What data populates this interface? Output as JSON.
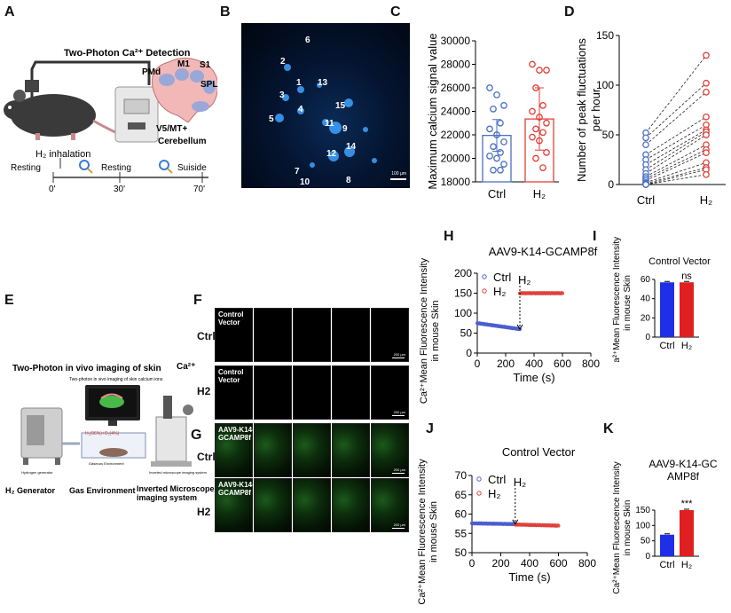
{
  "panels": {
    "A": {
      "letter": "A",
      "title": "Two-Photon Ca²⁺ Detection",
      "regions": [
        "PMd",
        "M1",
        "S1",
        "SPL",
        "V5/MT+",
        "Cerebellum"
      ],
      "timeline": {
        "h2_label": "H₂ inhalation",
        "events": [
          "Resting",
          "Resting",
          "Suiside"
        ],
        "times": [
          "0'",
          "30'",
          "70'"
        ]
      }
    },
    "B": {
      "letter": "B",
      "cell_ids": [
        "1",
        "2",
        "3",
        "4",
        "5",
        "6",
        "7",
        "8",
        "9",
        "10",
        "11",
        "12",
        "13",
        "14",
        "15"
      ],
      "scalebar": "100 µm"
    },
    "C": {
      "letter": "C"
    },
    "D": {
      "letter": "D"
    },
    "E": {
      "letter": "E",
      "title": "Two-Photon in vivo imaging of skin",
      "ca_label": "Ca²⁺",
      "small_title": "Two-photon in vivo imaging of skin calcium ions",
      "gas_formula": "H₂(96%)+O₂(4%)",
      "bottom_labels": [
        "H₂ Generator",
        "Gas Environment",
        "Inverted Microscope imaging system"
      ],
      "small_labels": [
        "Hydrogen generator",
        "Gaseous Environment",
        "Inverted microscope imaging system"
      ]
    },
    "F": {
      "letter": "F",
      "rows": [
        {
          "row_label": "Ctrl",
          "tile_label": "Control Vector"
        },
        {
          "row_label": "H2",
          "tile_label": "Control Vector"
        }
      ],
      "scale": "200 µm"
    },
    "G": {
      "letter": "G",
      "rows": [
        {
          "row_label": "Ctrl",
          "tile_label": "AAV9-K14-GCAMP8f"
        },
        {
          "row_label": "H2",
          "tile_label": "AAV9-K14-GCAMP8f"
        }
      ],
      "scale": "200 µm"
    },
    "H": {
      "letter": "H"
    },
    "I": {
      "letter": "I"
    },
    "J": {
      "letter": "J"
    },
    "K": {
      "letter": "K"
    }
  },
  "chart_data": [
    {
      "id": "C",
      "type": "bar",
      "categories": [
        "Ctrl",
        "H2"
      ],
      "values": [
        21950,
        23350
      ],
      "errors": [
        1350,
        2650
      ],
      "colors": [
        "#4a6fc4",
        "#e0413a"
      ],
      "points": [
        [
          26000,
          25400,
          24500,
          24200,
          23000,
          22500,
          22000,
          21400,
          21000,
          20500,
          20200,
          20000,
          19500,
          19000,
          19000
        ],
        [
          28000,
          27500,
          27500,
          26000,
          24500,
          24000,
          23500,
          23000,
          22500,
          22200,
          21800,
          21500,
          20500,
          20000,
          19200
        ]
      ],
      "ylabel": "Maximum calcium signal value",
      "ylim": [
        18000,
        30000
      ],
      "yticks": [
        "18000",
        "20000",
        "22000",
        "24000",
        "26000",
        "28000",
        "30000"
      ],
      "xtick_labels": [
        "Ctrl",
        "H₂"
      ]
    },
    {
      "id": "D",
      "type": "scatter",
      "categories": [
        "Ctrl",
        "H2"
      ],
      "paired": [
        [
          52,
          130
        ],
        [
          47,
          102
        ],
        [
          40,
          93
        ],
        [
          30,
          68
        ],
        [
          25,
          60
        ],
        [
          20,
          55
        ],
        [
          15,
          53
        ],
        [
          11,
          50
        ],
        [
          8,
          40
        ],
        [
          6,
          35
        ],
        [
          4,
          32
        ],
        [
          2,
          22
        ],
        [
          1,
          17
        ],
        [
          0,
          15
        ],
        [
          0,
          10
        ]
      ],
      "colors": [
        "#4a6fc4",
        "#e0413a"
      ],
      "ylabel": "Number of peak fluctuations per hour",
      "ylabel_lines": [
        "Number of peak fluctuations",
        "per hour"
      ],
      "ylim": [
        0,
        150
      ],
      "yticks": [
        "0",
        "50",
        "100",
        "150"
      ],
      "xtick_labels": [
        "Ctrl",
        "H₂"
      ]
    },
    {
      "id": "H",
      "type": "line",
      "title": "AAV9-K14-GCAMP8f",
      "series": [
        {
          "name": "Ctrl",
          "legend": "Ctrl",
          "color": "#4a5fd0",
          "x_range": [
            0,
            300
          ],
          "y_start": 75,
          "y_end": 60
        },
        {
          "name": "H2",
          "legend": "H₂",
          "color": "#e0413a",
          "x_range": [
            300,
            600
          ],
          "y_start": 150,
          "y_end": 150
        }
      ],
      "annotation": "H₂",
      "ylabel_lines": [
        "Ca²⁺Mean Fluorescence Intensity",
        "in mouse Skin"
      ],
      "xlabel": "Time (s)",
      "xlim": [
        0,
        800
      ],
      "ylim": [
        0,
        200
      ],
      "xticks": [
        "0",
        "200",
        "400",
        "600",
        "800"
      ],
      "yticks": [
        "0",
        "50",
        "100",
        "150",
        "200"
      ]
    },
    {
      "id": "I",
      "type": "bar",
      "title": "Control Vector",
      "categories": [
        "Ctrl",
        "H2"
      ],
      "values": [
        57,
        57
      ],
      "colors": [
        "#1f2fe6",
        "#e02020"
      ],
      "annotation": "ns",
      "ylabel_lines": [
        "Ca²⁺Mean Fluorescence Intensity",
        "in mouse Skin"
      ],
      "ylim": [
        0,
        60
      ],
      "yticks": [
        "0",
        "20",
        "40",
        "60"
      ],
      "xtick_labels": [
        "Ctrl",
        "H₂"
      ]
    },
    {
      "id": "J",
      "type": "line",
      "title": "Control Vector",
      "series": [
        {
          "name": "Ctrl",
          "legend": "Ctrl",
          "color": "#4a5fd0",
          "x_range": [
            0,
            300
          ],
          "y_start": 57.6,
          "y_end": 57.4
        },
        {
          "name": "H2",
          "legend": "H₂",
          "color": "#e0413a",
          "x_range": [
            300,
            600
          ],
          "y_start": 57.3,
          "y_end": 57.0
        }
      ],
      "annotation": "H₂",
      "ylabel_lines": [
        "Ca²⁺Mean Fluorescence Intensity",
        "in mouse Skin"
      ],
      "xlabel": "Time (s)",
      "xlim": [
        0,
        800
      ],
      "ylim": [
        50,
        70
      ],
      "xticks": [
        "0",
        "200",
        "400",
        "600",
        "800"
      ],
      "yticks": [
        "50",
        "55",
        "60",
        "65",
        "70"
      ]
    },
    {
      "id": "K",
      "type": "bar",
      "title_lines": [
        "AAV9-K14-GC",
        "AMP8f"
      ],
      "categories": [
        "Ctrl",
        "H2"
      ],
      "values": [
        70,
        150
      ],
      "colors": [
        "#1f2fe6",
        "#e02020"
      ],
      "annotation": "***",
      "ylabel_lines": [
        "Ca²⁺Mean Fluorescence Intensity",
        "in mouse Skin"
      ],
      "ylim": [
        0,
        150
      ],
      "yticks": [
        "0",
        "50",
        "100",
        "150"
      ],
      "xtick_labels": [
        "Ctrl",
        "H₂"
      ]
    }
  ]
}
